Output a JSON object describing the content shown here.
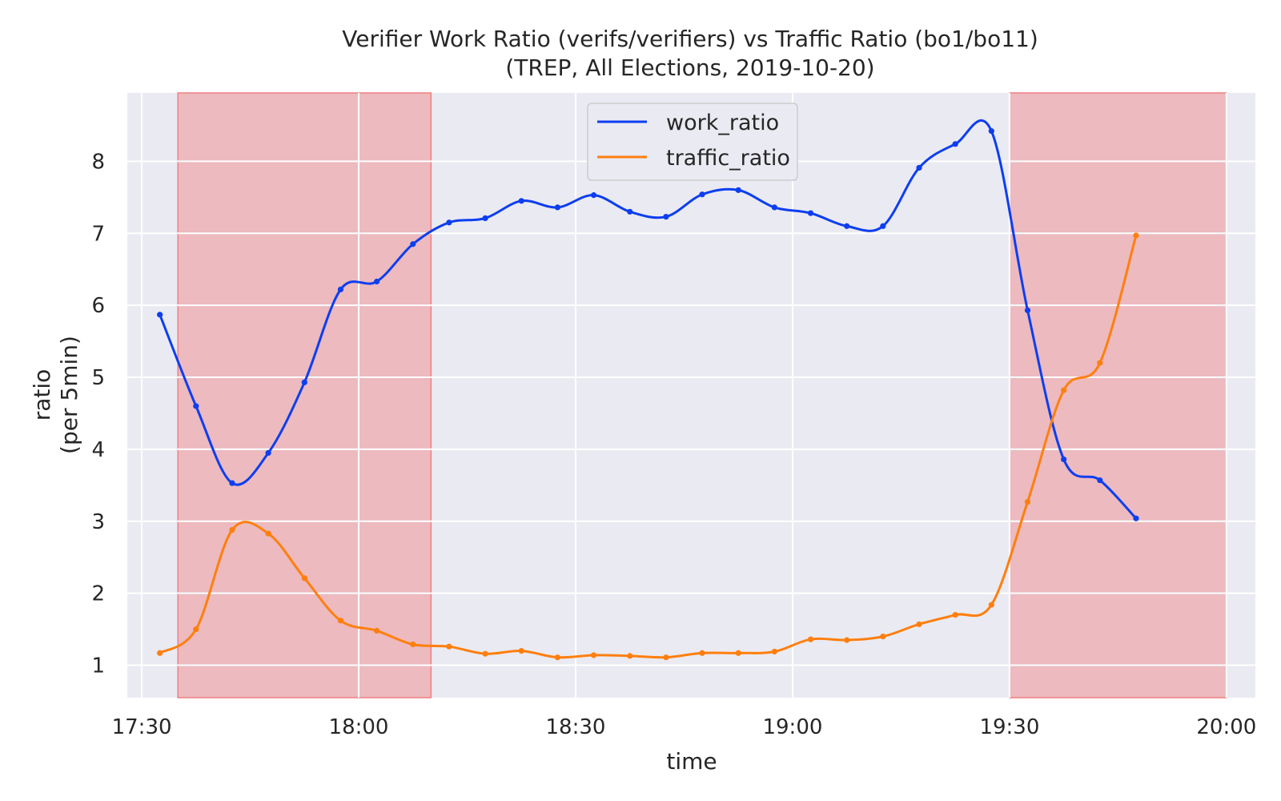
{
  "chart_data": {
    "type": "line",
    "title_line1": "Verifier Work Ratio (verifs/verifiers) vs Traffic Ratio (bo1/bo11)",
    "title_line2": "(TREP, All Elections, 2019-10-20)",
    "xlabel": "time",
    "ylabel_line1": "ratio",
    "ylabel_line2": "(per 5min)",
    "x_unit": "minutes since 17:30",
    "xlim": [
      "17:28",
      "20:04"
    ],
    "ylim": [
      0.55,
      8.95
    ],
    "x_ticks": [
      {
        "label": "17:30",
        "minutes": 0
      },
      {
        "label": "18:00",
        "minutes": 30
      },
      {
        "label": "18:30",
        "minutes": 60
      },
      {
        "label": "19:00",
        "minutes": 90
      },
      {
        "label": "19:30",
        "minutes": 120
      },
      {
        "label": "20:00",
        "minutes": 150
      }
    ],
    "y_ticks": [
      1,
      2,
      3,
      4,
      5,
      6,
      7,
      8
    ],
    "grid": true,
    "legend_position": "top-center",
    "shaded_regions": [
      {
        "start": "17:35",
        "end": "18:10",
        "color": "#f08080"
      },
      {
        "start": "19:30",
        "end": "20:00",
        "color": "#f08080"
      }
    ],
    "x": [
      "17:32:30",
      "17:37:30",
      "17:42:30",
      "17:47:30",
      "17:52:30",
      "17:57:30",
      "18:02:30",
      "18:07:30",
      "18:12:30",
      "18:17:30",
      "18:22:30",
      "18:27:30",
      "18:32:30",
      "18:37:30",
      "18:42:30",
      "18:47:30",
      "18:52:30",
      "18:57:30",
      "19:02:30",
      "19:07:30",
      "19:12:30",
      "19:17:30",
      "19:22:30",
      "19:27:30",
      "19:32:30",
      "19:37:30",
      "19:42:30",
      "19:47:30"
    ],
    "series": [
      {
        "name": "work_ratio",
        "color": "#0d3ef0",
        "values": [
          5.87,
          4.6,
          3.53,
          3.95,
          4.93,
          6.22,
          6.33,
          6.85,
          7.15,
          7.21,
          7.45,
          7.36,
          7.53,
          7.3,
          7.23,
          7.54,
          7.6,
          7.36,
          7.28,
          7.1,
          7.1,
          7.91,
          8.24,
          8.42,
          5.93,
          3.86,
          3.57,
          3.04
        ]
      },
      {
        "name": "traffic_ratio",
        "color": "#ff7f0e",
        "values": [
          1.17,
          1.5,
          2.88,
          2.83,
          2.21,
          1.62,
          1.48,
          1.29,
          1.26,
          1.16,
          1.2,
          1.11,
          1.14,
          1.13,
          1.11,
          1.17,
          1.17,
          1.19,
          1.36,
          1.35,
          1.4,
          1.57,
          1.7,
          1.84,
          3.27,
          4.82,
          5.2,
          6.97
        ]
      }
    ]
  }
}
